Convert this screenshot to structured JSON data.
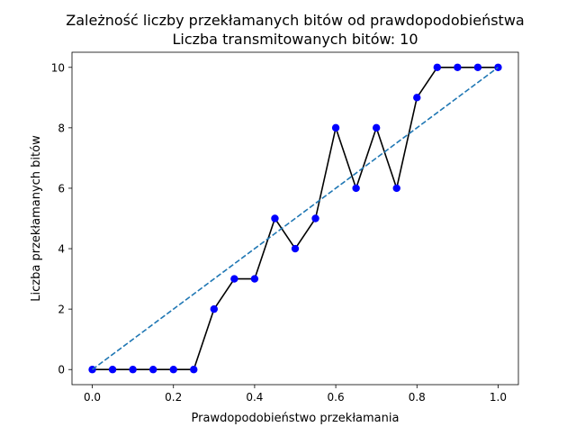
{
  "chart_data": {
    "type": "line",
    "title": "Zależność liczby przekłamanych bitów od prawdopodobieństwa",
    "subtitle": "Liczba transmitowanych bitów: 10",
    "xlabel": "Prawdopodobieństwo przekłamania",
    "ylabel": "Liczba przekłamanych bitów",
    "xlim": [
      -0.05,
      1.05
    ],
    "ylim": [
      -0.5,
      10.5
    ],
    "x_ticks": [
      0.0,
      0.2,
      0.4,
      0.6,
      0.8,
      1.0
    ],
    "x_tick_labels": [
      "0.0",
      "0.2",
      "0.4",
      "0.6",
      "0.8",
      "1.0"
    ],
    "y_ticks": [
      0,
      2,
      4,
      6,
      8,
      10
    ],
    "y_tick_labels": [
      "0",
      "2",
      "4",
      "6",
      "8",
      "10"
    ],
    "grid": false,
    "series": [
      {
        "kind": "measured",
        "style": "solid-line-with-markers",
        "line_color": "#000000",
        "marker_color": "#0000ff",
        "x": [
          0.0,
          0.05,
          0.1,
          0.15,
          0.2,
          0.25,
          0.3,
          0.35,
          0.4,
          0.45,
          0.5,
          0.55,
          0.6,
          0.65,
          0.7,
          0.75,
          0.8,
          0.85,
          0.9,
          0.95,
          1.0
        ],
        "y": [
          0,
          0,
          0,
          0,
          0,
          0,
          2,
          3,
          3,
          5,
          4,
          5,
          8,
          6,
          8,
          6,
          9,
          10,
          10,
          10,
          10
        ]
      },
      {
        "kind": "reference",
        "style": "dashed-line",
        "line_color": "#1f77b4",
        "x": [
          0.0,
          1.0
        ],
        "y": [
          0,
          10
        ]
      }
    ]
  }
}
